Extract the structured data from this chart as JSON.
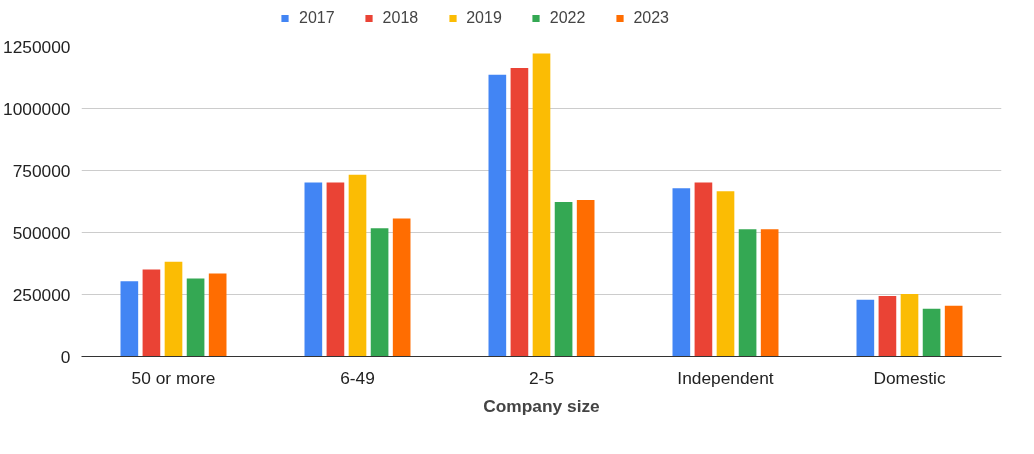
{
  "chart_data": {
    "type": "bar",
    "xlabel": "Company size",
    "categories": [
      "50 or more",
      "6-49",
      "2-5",
      "Independent",
      "Domestic"
    ],
    "series": [
      {
        "name": "2017",
        "color": "#4285f4",
        "values": [
          303000,
          702000,
          1136000,
          678000,
          229000
        ]
      },
      {
        "name": "2018",
        "color": "#ea4335",
        "values": [
          351000,
          702000,
          1163000,
          702000,
          244000
        ]
      },
      {
        "name": "2019",
        "color": "#fbbc04",
        "values": [
          382000,
          733000,
          1222000,
          666000,
          252000
        ]
      },
      {
        "name": "2022",
        "color": "#34a853",
        "values": [
          315000,
          517000,
          623000,
          513000,
          193000
        ]
      },
      {
        "name": "2023",
        "color": "#ff6d01",
        "values": [
          335000,
          556000,
          631000,
          513000,
          205000
        ]
      }
    ],
    "ylim": [
      0,
      1250000
    ],
    "yticks": [
      0,
      250000,
      500000,
      750000,
      1000000,
      1250000
    ],
    "grid": "y",
    "legend": "top"
  }
}
